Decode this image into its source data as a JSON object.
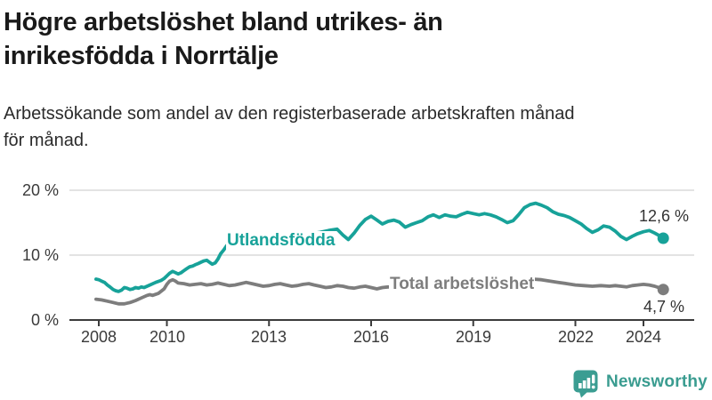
{
  "chart_data": {
    "type": "line",
    "title": "Högre arbetslöshet bland utrikes- än\ninrikesfödda i Norrtälje",
    "subtitle": "Arbetssökande som andel av den registerbaserade arbetskraften månad\nför månad.",
    "unit": "%",
    "grid": "horizontal",
    "legend_position": "inline-labels",
    "ylim": [
      0,
      21
    ],
    "xlim": [
      2007.1,
      2025.5
    ],
    "y_ticks": [
      {
        "value": 20,
        "label": "20 %"
      },
      {
        "value": 10,
        "label": "10 %"
      },
      {
        "value": 0,
        "label": "0 %"
      }
    ],
    "x_ticks": [
      {
        "year": 2008,
        "label": "2008"
      },
      {
        "year": 2010,
        "label": "2010"
      },
      {
        "year": 2013,
        "label": "2013"
      },
      {
        "year": 2016,
        "label": "2016"
      },
      {
        "year": 2019,
        "label": "2019"
      },
      {
        "year": 2022,
        "label": "2022"
      },
      {
        "year": 2024,
        "label": "2024"
      }
    ],
    "series": [
      {
        "name": "Utlandsfödda",
        "color": "#17a299",
        "end_value": 12.6,
        "end_label": "12,6 %",
        "points": [
          [
            2007.92,
            6.3
          ],
          [
            2008.0,
            6.2
          ],
          [
            2008.08,
            6.0
          ],
          [
            2008.17,
            5.8
          ],
          [
            2008.25,
            5.4
          ],
          [
            2008.33,
            5.1
          ],
          [
            2008.42,
            4.7
          ],
          [
            2008.5,
            4.5
          ],
          [
            2008.58,
            4.4
          ],
          [
            2008.67,
            4.6
          ],
          [
            2008.75,
            5.0
          ],
          [
            2008.83,
            4.9
          ],
          [
            2008.92,
            4.7
          ],
          [
            2009.0,
            4.8
          ],
          [
            2009.08,
            5.0
          ],
          [
            2009.17,
            4.9
          ],
          [
            2009.25,
            5.1
          ],
          [
            2009.33,
            5.0
          ],
          [
            2009.5,
            5.4
          ],
          [
            2009.67,
            5.8
          ],
          [
            2009.83,
            6.1
          ],
          [
            2009.92,
            6.4
          ],
          [
            2010.0,
            6.8
          ],
          [
            2010.08,
            7.2
          ],
          [
            2010.17,
            7.5
          ],
          [
            2010.25,
            7.3
          ],
          [
            2010.33,
            7.1
          ],
          [
            2010.42,
            7.3
          ],
          [
            2010.5,
            7.6
          ],
          [
            2010.58,
            7.9
          ],
          [
            2010.67,
            8.2
          ],
          [
            2010.75,
            8.3
          ],
          [
            2010.83,
            8.5
          ],
          [
            2010.92,
            8.7
          ],
          [
            2011.0,
            8.9
          ],
          [
            2011.08,
            9.1
          ],
          [
            2011.17,
            9.2
          ],
          [
            2011.25,
            8.9
          ],
          [
            2011.33,
            8.6
          ],
          [
            2011.42,
            8.8
          ],
          [
            2011.5,
            9.4
          ],
          [
            2011.58,
            10.2
          ],
          [
            2011.67,
            10.8
          ],
          [
            2011.75,
            11.4
          ],
          [
            2011.83,
            11.9
          ],
          [
            2011.92,
            12.2
          ],
          [
            2012.0,
            12.4
          ],
          [
            2012.25,
            12.6
          ],
          [
            2012.5,
            12.9
          ],
          [
            2012.75,
            13.1
          ],
          [
            2013.0,
            13.2
          ],
          [
            2013.25,
            13.0
          ],
          [
            2013.5,
            13.1
          ],
          [
            2013.75,
            13.3
          ],
          [
            2014.0,
            13.4
          ],
          [
            2014.25,
            13.3
          ],
          [
            2014.5,
            13.5
          ],
          [
            2014.75,
            13.8
          ],
          [
            2015.0,
            14.0
          ],
          [
            2015.17,
            13.1
          ],
          [
            2015.33,
            12.4
          ],
          [
            2015.5,
            13.4
          ],
          [
            2015.67,
            14.6
          ],
          [
            2015.83,
            15.5
          ],
          [
            2016.0,
            16.0
          ],
          [
            2016.17,
            15.4
          ],
          [
            2016.33,
            14.8
          ],
          [
            2016.5,
            15.2
          ],
          [
            2016.67,
            15.4
          ],
          [
            2016.83,
            15.1
          ],
          [
            2017.0,
            14.3
          ],
          [
            2017.17,
            14.7
          ],
          [
            2017.33,
            15.0
          ],
          [
            2017.5,
            15.3
          ],
          [
            2017.67,
            15.9
          ],
          [
            2017.83,
            16.2
          ],
          [
            2018.0,
            15.8
          ],
          [
            2018.17,
            16.2
          ],
          [
            2018.33,
            16.0
          ],
          [
            2018.5,
            15.9
          ],
          [
            2018.67,
            16.3
          ],
          [
            2018.83,
            16.6
          ],
          [
            2019.0,
            16.4
          ],
          [
            2019.17,
            16.2
          ],
          [
            2019.33,
            16.4
          ],
          [
            2019.5,
            16.2
          ],
          [
            2019.67,
            15.9
          ],
          [
            2019.83,
            15.5
          ],
          [
            2020.0,
            15.0
          ],
          [
            2020.17,
            15.3
          ],
          [
            2020.33,
            16.2
          ],
          [
            2020.5,
            17.3
          ],
          [
            2020.67,
            17.8
          ],
          [
            2020.83,
            18.0
          ],
          [
            2021.0,
            17.7
          ],
          [
            2021.17,
            17.3
          ],
          [
            2021.33,
            16.7
          ],
          [
            2021.5,
            16.3
          ],
          [
            2021.67,
            16.1
          ],
          [
            2021.83,
            15.8
          ],
          [
            2022.0,
            15.3
          ],
          [
            2022.17,
            14.8
          ],
          [
            2022.33,
            14.1
          ],
          [
            2022.5,
            13.5
          ],
          [
            2022.67,
            13.9
          ],
          [
            2022.83,
            14.5
          ],
          [
            2023.0,
            14.3
          ],
          [
            2023.17,
            13.7
          ],
          [
            2023.33,
            12.9
          ],
          [
            2023.5,
            12.4
          ],
          [
            2023.67,
            12.9
          ],
          [
            2023.83,
            13.3
          ],
          [
            2024.0,
            13.6
          ],
          [
            2024.17,
            13.8
          ],
          [
            2024.33,
            13.4
          ],
          [
            2024.5,
            12.9
          ],
          [
            2024.58,
            12.6
          ]
        ]
      },
      {
        "name": "Total arbetslöshet",
        "color": "#7d7d7d",
        "end_value": 4.7,
        "end_label": "4,7 %",
        "points": [
          [
            2007.92,
            3.2
          ],
          [
            2008.08,
            3.1
          ],
          [
            2008.25,
            2.9
          ],
          [
            2008.42,
            2.7
          ],
          [
            2008.58,
            2.5
          ],
          [
            2008.75,
            2.5
          ],
          [
            2008.92,
            2.7
          ],
          [
            2009.08,
            3.0
          ],
          [
            2009.25,
            3.4
          ],
          [
            2009.42,
            3.8
          ],
          [
            2009.5,
            3.9
          ],
          [
            2009.58,
            3.8
          ],
          [
            2009.75,
            4.1
          ],
          [
            2009.92,
            4.8
          ],
          [
            2010.0,
            5.5
          ],
          [
            2010.08,
            6.0
          ],
          [
            2010.17,
            6.2
          ],
          [
            2010.25,
            6.0
          ],
          [
            2010.33,
            5.7
          ],
          [
            2010.5,
            5.6
          ],
          [
            2010.67,
            5.4
          ],
          [
            2010.83,
            5.5
          ],
          [
            2011.0,
            5.6
          ],
          [
            2011.17,
            5.4
          ],
          [
            2011.33,
            5.5
          ],
          [
            2011.5,
            5.7
          ],
          [
            2011.67,
            5.5
          ],
          [
            2011.83,
            5.3
          ],
          [
            2012.0,
            5.4
          ],
          [
            2012.17,
            5.6
          ],
          [
            2012.33,
            5.8
          ],
          [
            2012.5,
            5.6
          ],
          [
            2012.67,
            5.4
          ],
          [
            2012.83,
            5.2
          ],
          [
            2013.0,
            5.3
          ],
          [
            2013.17,
            5.5
          ],
          [
            2013.33,
            5.6
          ],
          [
            2013.5,
            5.4
          ],
          [
            2013.67,
            5.2
          ],
          [
            2013.83,
            5.3
          ],
          [
            2014.0,
            5.5
          ],
          [
            2014.17,
            5.6
          ],
          [
            2014.33,
            5.4
          ],
          [
            2014.5,
            5.2
          ],
          [
            2014.67,
            5.0
          ],
          [
            2014.83,
            5.1
          ],
          [
            2015.0,
            5.3
          ],
          [
            2015.17,
            5.2
          ],
          [
            2015.33,
            5.0
          ],
          [
            2015.5,
            4.9
          ],
          [
            2015.67,
            5.1
          ],
          [
            2015.83,
            5.2
          ],
          [
            2016.0,
            5.0
          ],
          [
            2016.17,
            4.8
          ],
          [
            2016.33,
            5.0
          ],
          [
            2016.5,
            5.1
          ],
          [
            2016.75,
            4.9
          ],
          [
            2017.0,
            4.7
          ],
          [
            2017.25,
            4.8
          ],
          [
            2017.5,
            4.6
          ],
          [
            2017.75,
            4.5
          ],
          [
            2018.0,
            4.4
          ],
          [
            2018.25,
            4.5
          ],
          [
            2018.5,
            4.3
          ],
          [
            2018.75,
            4.4
          ],
          [
            2019.0,
            4.5
          ],
          [
            2019.25,
            4.4
          ],
          [
            2019.5,
            4.6
          ],
          [
            2019.75,
            4.8
          ],
          [
            2020.0,
            5.2
          ],
          [
            2020.25,
            5.8
          ],
          [
            2020.5,
            6.1
          ],
          [
            2020.75,
            6.3
          ],
          [
            2021.0,
            6.2
          ],
          [
            2021.25,
            6.0
          ],
          [
            2021.5,
            5.8
          ],
          [
            2021.75,
            5.6
          ],
          [
            2022.0,
            5.4
          ],
          [
            2022.25,
            5.3
          ],
          [
            2022.5,
            5.2
          ],
          [
            2022.75,
            5.3
          ],
          [
            2023.0,
            5.2
          ],
          [
            2023.17,
            5.3
          ],
          [
            2023.33,
            5.2
          ],
          [
            2023.5,
            5.1
          ],
          [
            2023.67,
            5.3
          ],
          [
            2023.83,
            5.4
          ],
          [
            2024.0,
            5.5
          ],
          [
            2024.17,
            5.4
          ],
          [
            2024.33,
            5.2
          ],
          [
            2024.5,
            4.9
          ],
          [
            2024.58,
            4.7
          ]
        ]
      }
    ],
    "colors": {
      "accent_teal": "#17a299",
      "line_gray": "#7d7d7d",
      "axis": "#3c3c3c",
      "gridline": "#dadada",
      "brand": "#3a9c90"
    }
  },
  "footer": {
    "brand": "Newsworthy"
  }
}
